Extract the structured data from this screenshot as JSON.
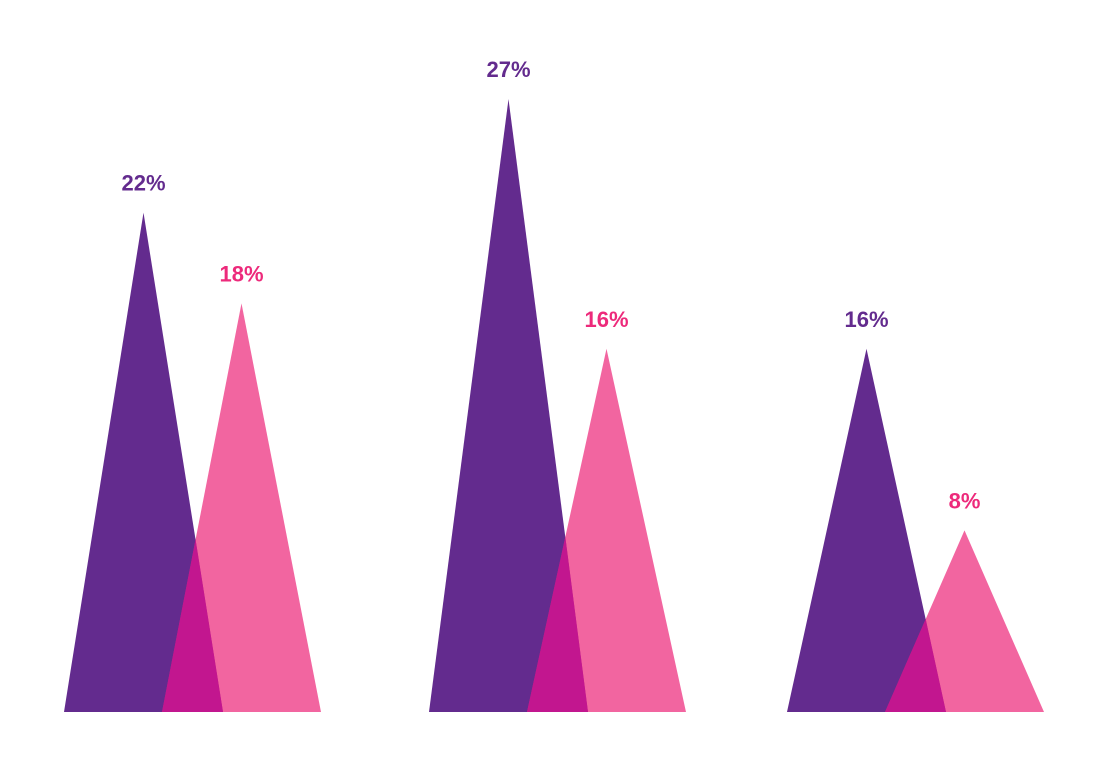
{
  "chart_data": {
    "type": "bar",
    "bar_shape": "triangle",
    "categories": [
      "",
      "",
      ""
    ],
    "series": [
      {
        "color": "#632b8e",
        "values": [
          22,
          27,
          16
        ],
        "labels": [
          "22%",
          "27%",
          "16%"
        ]
      },
      {
        "color": "#ed2a7b",
        "values": [
          18,
          16,
          8
        ],
        "labels": [
          "18%",
          "16%",
          "8%"
        ]
      }
    ],
    "overlap_color": "#c2168f",
    "title": "",
    "xlabel": "",
    "ylabel": "",
    "ylim": [
      0,
      27
    ],
    "grid": false,
    "legend": "none"
  }
}
